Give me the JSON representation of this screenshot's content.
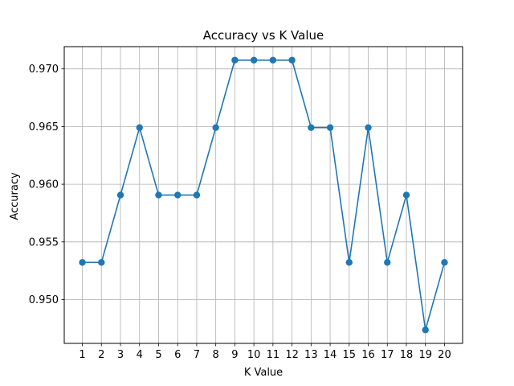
{
  "chart_data": {
    "type": "line",
    "title": "Accuracy vs K Value",
    "xlabel": "K Value",
    "ylabel": "Accuracy",
    "x": [
      1,
      2,
      3,
      4,
      5,
      6,
      7,
      8,
      9,
      10,
      11,
      12,
      13,
      14,
      15,
      16,
      17,
      18,
      19,
      20
    ],
    "series": [
      {
        "values": [
          0.95322,
          0.95322,
          0.95906,
          0.96491,
          0.95906,
          0.95906,
          0.95906,
          0.96491,
          0.97076,
          0.97076,
          0.97076,
          0.97076,
          0.96491,
          0.96491,
          0.95322,
          0.96491,
          0.95322,
          0.95906,
          0.94737,
          0.95322
        ],
        "color": "#1f77b4"
      }
    ],
    "xlim": [
      0.05,
      20.95
    ],
    "ylim": [
      0.9462,
      0.97193
    ],
    "yticks": [
      0.95,
      0.955,
      0.96,
      0.965,
      0.97
    ],
    "ytick_labels": [
      "0.950",
      "0.955",
      "0.960",
      "0.965",
      "0.970"
    ],
    "xtick_labels": [
      "1",
      "2",
      "3",
      "4",
      "5",
      "6",
      "7",
      "8",
      "9",
      "10",
      "11",
      "12",
      "13",
      "14",
      "15",
      "16",
      "17",
      "18",
      "19",
      "20"
    ],
    "grid": true,
    "marker": "circle"
  }
}
